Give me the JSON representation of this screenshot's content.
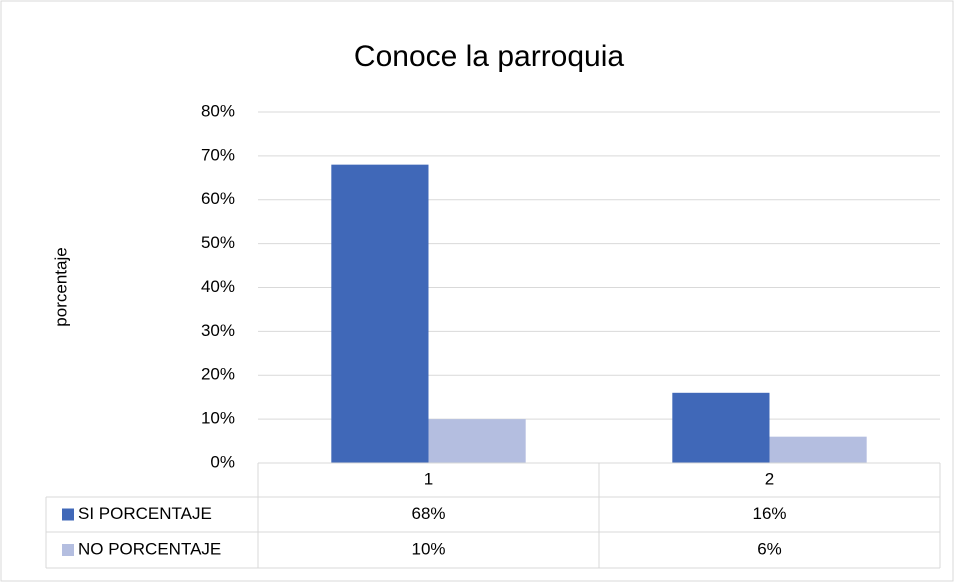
{
  "chart_data": {
    "type": "bar",
    "title": "Conoce la parroquia",
    "y_label": "porcentaje",
    "categories": [
      "1",
      "2"
    ],
    "series": [
      {
        "name": "SI PORCENTAJE",
        "color": "#4068b8",
        "values": [
          68,
          16
        ],
        "value_labels": [
          "68%",
          "16%"
        ]
      },
      {
        "name": "NO PORCENTAJE",
        "color": "#b4bee0",
        "values": [
          10,
          6
        ],
        "value_labels": [
          "10%",
          "6%"
        ]
      }
    ],
    "ylim": [
      0,
      80
    ],
    "yticks": [
      {
        "value": 0,
        "label": "0%"
      },
      {
        "value": 10,
        "label": "10%"
      },
      {
        "value": 20,
        "label": "20%"
      },
      {
        "value": 30,
        "label": "30%"
      },
      {
        "value": 40,
        "label": "40%"
      },
      {
        "value": 50,
        "label": "50%"
      },
      {
        "value": 60,
        "label": "60%"
      },
      {
        "value": 70,
        "label": "70%"
      },
      {
        "value": 80,
        "label": "80%"
      }
    ],
    "grid": true,
    "data_table": true
  }
}
